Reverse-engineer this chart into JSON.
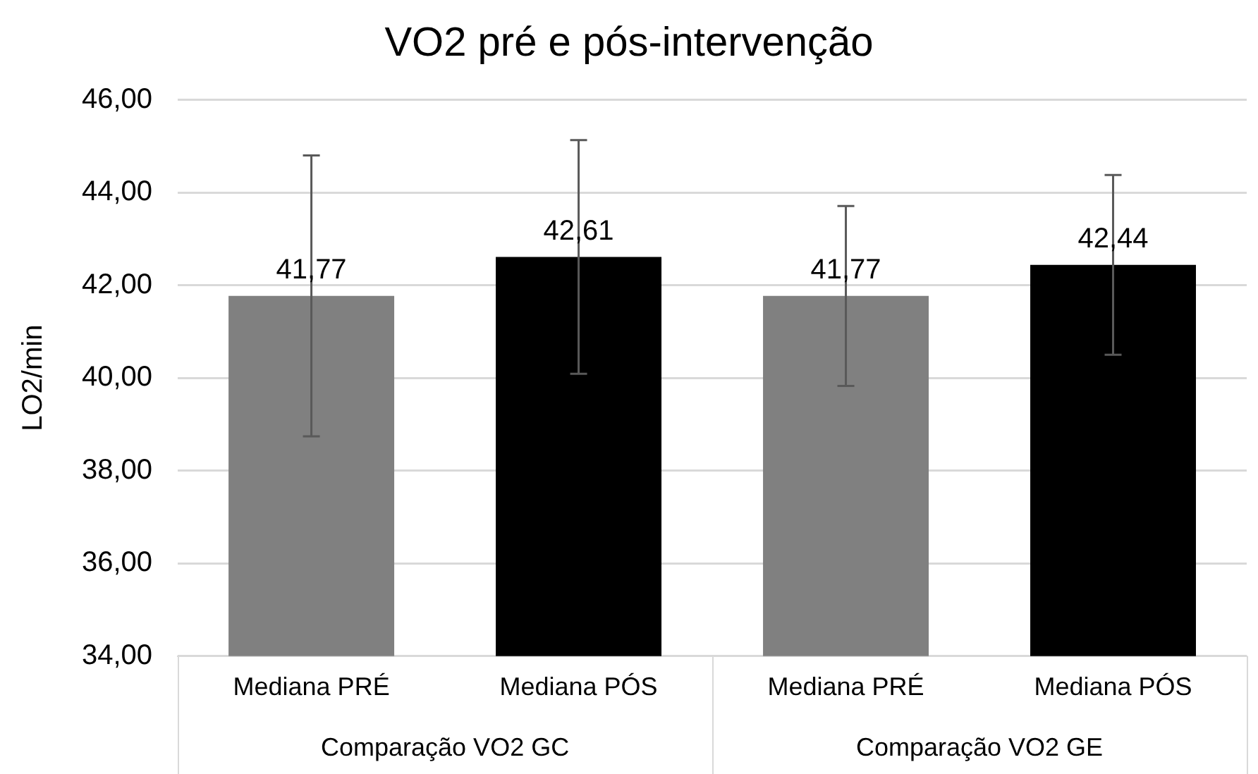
{
  "chart_data": {
    "type": "bar",
    "title": "VO2 pré e pós-intervenção",
    "ylabel": "LO2/min",
    "categories": [
      "Mediana PRÉ",
      "Mediana PÓS",
      "Mediana PRÉ",
      "Mediana PÓS"
    ],
    "values": [
      41.77,
      42.61,
      41.77,
      42.44
    ],
    "colors": [
      "#808080",
      "#000000",
      "#808080",
      "#000000"
    ],
    "errors": [
      3.03,
      2.52,
      1.94,
      1.94
    ],
    "value_labels": [
      "41,77",
      "42,61",
      "41,77",
      "42,44"
    ],
    "annotations": [
      "Comparação VO2 GC",
      "Comparação VO2 GE"
    ],
    "ylim": [
      34,
      46
    ],
    "yticks": [
      {
        "value": 34,
        "label": "34,00"
      },
      {
        "value": 36,
        "label": "36,00"
      },
      {
        "value": 38,
        "label": "38,00"
      },
      {
        "value": 40,
        "label": "40,00"
      },
      {
        "value": 42,
        "label": "42,00"
      },
      {
        "value": 44,
        "label": "44,00"
      },
      {
        "value": 46,
        "label": "46,00"
      }
    ],
    "grid": "y",
    "legend": false
  }
}
